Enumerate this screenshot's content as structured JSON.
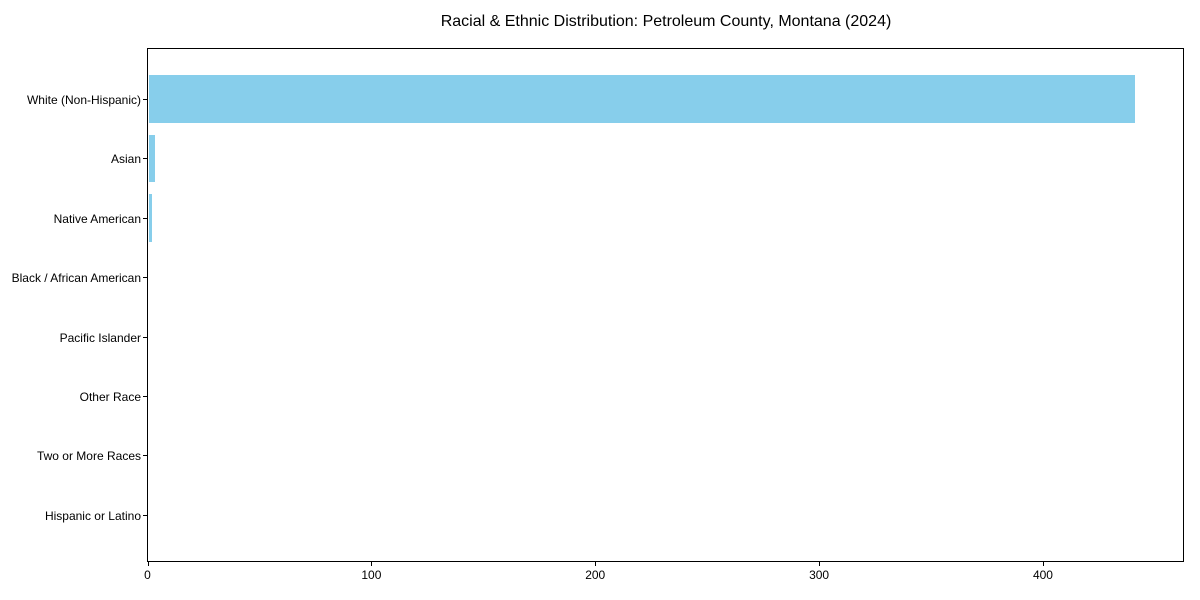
{
  "figure": {
    "background": "#ffffff",
    "spine_color": "#000000",
    "text_color": "#000000"
  },
  "chart_data": {
    "type": "bar",
    "orientation": "horizontal",
    "title": "Racial & Ethnic Distribution: Petroleum County, Montana (2024)",
    "categories": [
      "White (Non-Hispanic)",
      "Asian",
      "Native American",
      "Black / African American",
      "Pacific Islander",
      "Other Race",
      "Two or More Races",
      "Hispanic or Latino"
    ],
    "values": [
      441,
      3,
      2,
      0,
      0,
      0,
      0,
      0
    ],
    "bar_color": "#87CEEB",
    "xlabel": "",
    "ylabel": "",
    "xlim": [
      0,
      463
    ],
    "x_ticks": [
      0,
      100,
      200,
      300,
      400
    ],
    "x_tick_labels": [
      "0",
      "100",
      "200",
      "300",
      "400"
    ],
    "grid": false,
    "legend": null
  }
}
